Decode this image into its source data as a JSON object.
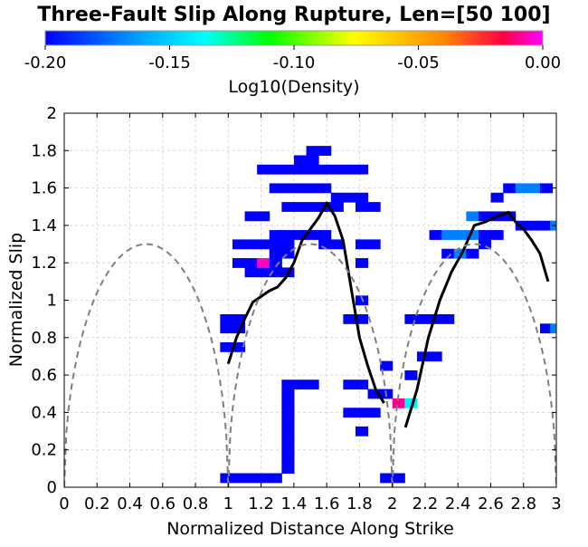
{
  "chart_data": {
    "type": "heatmap",
    "title": "Three-Fault Slip Along Rupture, Len=[50 100]",
    "xlabel": "Normalized Distance Along Strike",
    "ylabel": "Normalized Slip",
    "xlim": [
      0,
      3
    ],
    "ylim": [
      0,
      2
    ],
    "x_ticks": [
      "0",
      "0.2",
      "0.4",
      "0.6",
      "0.8",
      "1",
      "1.2",
      "1.4",
      "1.6",
      "1.8",
      "2",
      "2.2",
      "2.4",
      "2.6",
      "2.8",
      "3"
    ],
    "y_ticks": [
      "0",
      "0.2",
      "0.4",
      "0.6",
      "0.8",
      "1",
      "1.2",
      "1.4",
      "1.6",
      "1.8",
      "2"
    ],
    "grid": true,
    "colorbar": {
      "label": "Log10(Density)",
      "range": [
        -0.2,
        0.0
      ],
      "ticks": [
        "-0.20",
        "-0.15",
        "-0.10",
        "-0.05",
        "0.00"
      ],
      "colormap": [
        "#0000ff",
        "#00ffff",
        "#00ff00",
        "#ffff00",
        "#ff0000",
        "#ff00ff"
      ]
    },
    "cell_size": {
      "dx": 0.075,
      "dy": 0.05
    },
    "cells": [
      {
        "x": 0.988,
        "y": 0.05,
        "v": -0.2
      },
      {
        "x": 1.063,
        "y": 0.05,
        "v": -0.2
      },
      {
        "x": 1.138,
        "y": 0.05,
        "v": -0.2
      },
      {
        "x": 1.213,
        "y": 0.05,
        "v": -0.2
      },
      {
        "x": 1.288,
        "y": 0.05,
        "v": -0.2
      },
      {
        "x": 1.363,
        "y": 0.1,
        "v": -0.2
      },
      {
        "x": 1.363,
        "y": 0.15,
        "v": -0.2
      },
      {
        "x": 1.363,
        "y": 0.2,
        "v": -0.2
      },
      {
        "x": 1.363,
        "y": 0.25,
        "v": -0.2
      },
      {
        "x": 1.363,
        "y": 0.3,
        "v": -0.2
      },
      {
        "x": 1.363,
        "y": 0.35,
        "v": -0.2
      },
      {
        "x": 1.363,
        "y": 0.4,
        "v": -0.2
      },
      {
        "x": 1.363,
        "y": 0.45,
        "v": -0.2
      },
      {
        "x": 1.363,
        "y": 0.5,
        "v": -0.2
      },
      {
        "x": 1.363,
        "y": 0.55,
        "v": -0.2
      },
      {
        "x": 1.438,
        "y": 0.55,
        "v": -0.2
      },
      {
        "x": 1.513,
        "y": 0.55,
        "v": -0.2
      },
      {
        "x": 0.988,
        "y": 0.75,
        "v": -0.2
      },
      {
        "x": 1.063,
        "y": 0.75,
        "v": -0.2
      },
      {
        "x": 0.988,
        "y": 0.85,
        "v": -0.2
      },
      {
        "x": 0.988,
        "y": 0.9,
        "v": -0.2
      },
      {
        "x": 1.063,
        "y": 0.85,
        "v": -0.2
      },
      {
        "x": 1.063,
        "y": 0.9,
        "v": -0.2
      },
      {
        "x": 1.138,
        "y": 1.15,
        "v": -0.2
      },
      {
        "x": 1.213,
        "y": 1.15,
        "v": -0.2
      },
      {
        "x": 1.288,
        "y": 1.15,
        "v": -0.2
      },
      {
        "x": 1.363,
        "y": 1.15,
        "v": -0.2
      },
      {
        "x": 1.063,
        "y": 1.2,
        "v": -0.2
      },
      {
        "x": 1.138,
        "y": 1.2,
        "v": -0.2
      },
      {
        "x": 1.213,
        "y": 1.2,
        "v": -0.005
      },
      {
        "x": 1.288,
        "y": 1.2,
        "v": -0.2
      },
      {
        "x": 1.288,
        "y": 1.25,
        "v": -0.2
      },
      {
        "x": 1.363,
        "y": 1.25,
        "v": -0.2
      },
      {
        "x": 1.063,
        "y": 1.3,
        "v": -0.2
      },
      {
        "x": 1.138,
        "y": 1.3,
        "v": -0.2
      },
      {
        "x": 1.213,
        "y": 1.3,
        "v": -0.2
      },
      {
        "x": 1.288,
        "y": 1.3,
        "v": -0.2
      },
      {
        "x": 1.363,
        "y": 1.3,
        "v": -0.2
      },
      {
        "x": 1.288,
        "y": 1.35,
        "v": -0.2
      },
      {
        "x": 1.363,
        "y": 1.35,
        "v": -0.2
      },
      {
        "x": 1.438,
        "y": 1.35,
        "v": -0.2
      },
      {
        "x": 1.513,
        "y": 1.35,
        "v": -0.2
      },
      {
        "x": 1.588,
        "y": 1.35,
        "v": -0.2
      },
      {
        "x": 1.138,
        "y": 1.45,
        "v": -0.2
      },
      {
        "x": 1.213,
        "y": 1.45,
        "v": -0.2
      },
      {
        "x": 1.363,
        "y": 1.5,
        "v": -0.2
      },
      {
        "x": 1.438,
        "y": 1.5,
        "v": -0.2
      },
      {
        "x": 1.513,
        "y": 1.5,
        "v": -0.2
      },
      {
        "x": 1.588,
        "y": 1.5,
        "v": -0.2
      },
      {
        "x": 1.663,
        "y": 1.5,
        "v": -0.2
      },
      {
        "x": 1.813,
        "y": 1.5,
        "v": -0.2
      },
      {
        "x": 1.888,
        "y": 1.5,
        "v": -0.2
      },
      {
        "x": 1.663,
        "y": 1.55,
        "v": -0.2
      },
      {
        "x": 1.738,
        "y": 1.55,
        "v": -0.2
      },
      {
        "x": 1.813,
        "y": 1.55,
        "v": -0.2
      },
      {
        "x": 1.288,
        "y": 1.6,
        "v": -0.2
      },
      {
        "x": 1.363,
        "y": 1.6,
        "v": -0.2
      },
      {
        "x": 1.438,
        "y": 1.6,
        "v": -0.2
      },
      {
        "x": 1.513,
        "y": 1.6,
        "v": -0.2
      },
      {
        "x": 1.588,
        "y": 1.6,
        "v": -0.2
      },
      {
        "x": 1.213,
        "y": 1.7,
        "v": -0.2
      },
      {
        "x": 1.288,
        "y": 1.7,
        "v": -0.2
      },
      {
        "x": 1.363,
        "y": 1.7,
        "v": -0.2
      },
      {
        "x": 1.438,
        "y": 1.7,
        "v": -0.2
      },
      {
        "x": 1.513,
        "y": 1.7,
        "v": -0.2
      },
      {
        "x": 1.588,
        "y": 1.7,
        "v": -0.2
      },
      {
        "x": 1.663,
        "y": 1.7,
        "v": -0.2
      },
      {
        "x": 1.738,
        "y": 1.7,
        "v": -0.2
      },
      {
        "x": 1.813,
        "y": 1.7,
        "v": -0.2
      },
      {
        "x": 1.438,
        "y": 1.75,
        "v": -0.2
      },
      {
        "x": 1.513,
        "y": 1.75,
        "v": -0.2
      },
      {
        "x": 1.513,
        "y": 1.8,
        "v": -0.2
      },
      {
        "x": 1.588,
        "y": 1.8,
        "v": -0.2
      },
      {
        "x": 1.588,
        "y": 1.3,
        "v": -0.2
      },
      {
        "x": 1.663,
        "y": 1.3,
        "v": -0.2
      },
      {
        "x": 1.813,
        "y": 1.3,
        "v": -0.2
      },
      {
        "x": 1.888,
        "y": 1.3,
        "v": -0.2
      },
      {
        "x": 1.813,
        "y": 1.2,
        "v": -0.2
      },
      {
        "x": 1.813,
        "y": 1.0,
        "v": -0.2
      },
      {
        "x": 1.738,
        "y": 0.9,
        "v": -0.2
      },
      {
        "x": 1.813,
        "y": 0.9,
        "v": -0.2
      },
      {
        "x": 1.963,
        "y": 0.65,
        "v": -0.2
      },
      {
        "x": 1.738,
        "y": 0.55,
        "v": -0.2
      },
      {
        "x": 1.813,
        "y": 0.55,
        "v": -0.2
      },
      {
        "x": 1.888,
        "y": 0.5,
        "v": -0.2
      },
      {
        "x": 1.963,
        "y": 0.5,
        "v": -0.2
      },
      {
        "x": 1.738,
        "y": 0.4,
        "v": -0.2
      },
      {
        "x": 1.813,
        "y": 0.4,
        "v": -0.2
      },
      {
        "x": 1.888,
        "y": 0.4,
        "v": -0.2
      },
      {
        "x": 1.813,
        "y": 0.3,
        "v": -0.2
      },
      {
        "x": 1.963,
        "y": 0.05,
        "v": -0.2
      },
      {
        "x": 2.038,
        "y": 0.05,
        "v": -0.2
      },
      {
        "x": 2.038,
        "y": 0.45,
        "v": -0.01
      },
      {
        "x": 2.113,
        "y": 0.45,
        "v": -0.14
      },
      {
        "x": 2.113,
        "y": 0.6,
        "v": -0.2
      },
      {
        "x": 2.188,
        "y": 0.7,
        "v": -0.2
      },
      {
        "x": 2.263,
        "y": 0.7,
        "v": -0.2
      },
      {
        "x": 2.113,
        "y": 0.9,
        "v": -0.2
      },
      {
        "x": 2.188,
        "y": 0.9,
        "v": -0.2
      },
      {
        "x": 2.263,
        "y": 0.9,
        "v": -0.2
      },
      {
        "x": 2.338,
        "y": 0.9,
        "v": -0.2
      },
      {
        "x": 2.338,
        "y": 1.25,
        "v": -0.2
      },
      {
        "x": 2.413,
        "y": 1.25,
        "v": -0.17
      },
      {
        "x": 2.488,
        "y": 1.25,
        "v": -0.2
      },
      {
        "x": 2.263,
        "y": 1.35,
        "v": -0.2
      },
      {
        "x": 2.338,
        "y": 1.35,
        "v": -0.17
      },
      {
        "x": 2.413,
        "y": 1.35,
        "v": -0.17
      },
      {
        "x": 2.488,
        "y": 1.35,
        "v": -0.17
      },
      {
        "x": 2.563,
        "y": 1.35,
        "v": -0.2
      },
      {
        "x": 2.638,
        "y": 1.35,
        "v": -0.2
      },
      {
        "x": 2.563,
        "y": 1.3,
        "v": -0.2
      },
      {
        "x": 2.488,
        "y": 1.45,
        "v": -0.17
      },
      {
        "x": 2.563,
        "y": 1.45,
        "v": -0.2
      },
      {
        "x": 2.638,
        "y": 1.45,
        "v": -0.2
      },
      {
        "x": 2.713,
        "y": 1.45,
        "v": -0.2
      },
      {
        "x": 2.788,
        "y": 1.4,
        "v": -0.2
      },
      {
        "x": 2.863,
        "y": 1.4,
        "v": -0.2
      },
      {
        "x": 2.938,
        "y": 1.4,
        "v": -0.2
      },
      {
        "x": 3.0,
        "y": 1.4,
        "v": -0.17
      },
      {
        "x": 2.638,
        "y": 1.55,
        "v": -0.2
      },
      {
        "x": 2.713,
        "y": 1.6,
        "v": -0.2
      },
      {
        "x": 2.788,
        "y": 1.6,
        "v": -0.17
      },
      {
        "x": 2.863,
        "y": 1.6,
        "v": -0.17
      },
      {
        "x": 2.938,
        "y": 1.6,
        "v": -0.2
      },
      {
        "x": 2.938,
        "y": 0.85,
        "v": -0.2
      },
      {
        "x": 3.0,
        "y": 0.85,
        "v": -0.17
      }
    ],
    "series": [
      {
        "style": "solid-black",
        "x": [
          1.0,
          1.05,
          1.1,
          1.15,
          1.2,
          1.25,
          1.3,
          1.35,
          1.4,
          1.45,
          1.5,
          1.55,
          1.6,
          1.65,
          1.7,
          1.75,
          1.8,
          1.85,
          1.9,
          1.95
        ],
        "y": [
          0.66,
          0.8,
          0.9,
          0.99,
          1.02,
          1.05,
          1.07,
          1.12,
          1.2,
          1.32,
          1.38,
          1.44,
          1.52,
          1.45,
          1.32,
          1.06,
          0.8,
          0.65,
          0.52,
          0.45
        ]
      },
      {
        "style": "solid-black",
        "x": [
          2.08,
          2.15,
          2.22,
          2.29,
          2.36,
          2.43,
          2.5,
          2.57,
          2.64,
          2.71,
          2.75,
          2.8,
          2.85,
          2.9,
          2.95
        ],
        "y": [
          0.32,
          0.52,
          0.8,
          1.0,
          1.15,
          1.26,
          1.4,
          1.42,
          1.45,
          1.47,
          1.42,
          1.38,
          1.32,
          1.25,
          1.1
        ]
      },
      {
        "style": "dashed-gray",
        "segments": [
          [
            0.0,
            1.0
          ],
          [
            1.0,
            2.0
          ],
          [
            2.0,
            3.0
          ]
        ],
        "peak": 1.3
      }
    ]
  }
}
